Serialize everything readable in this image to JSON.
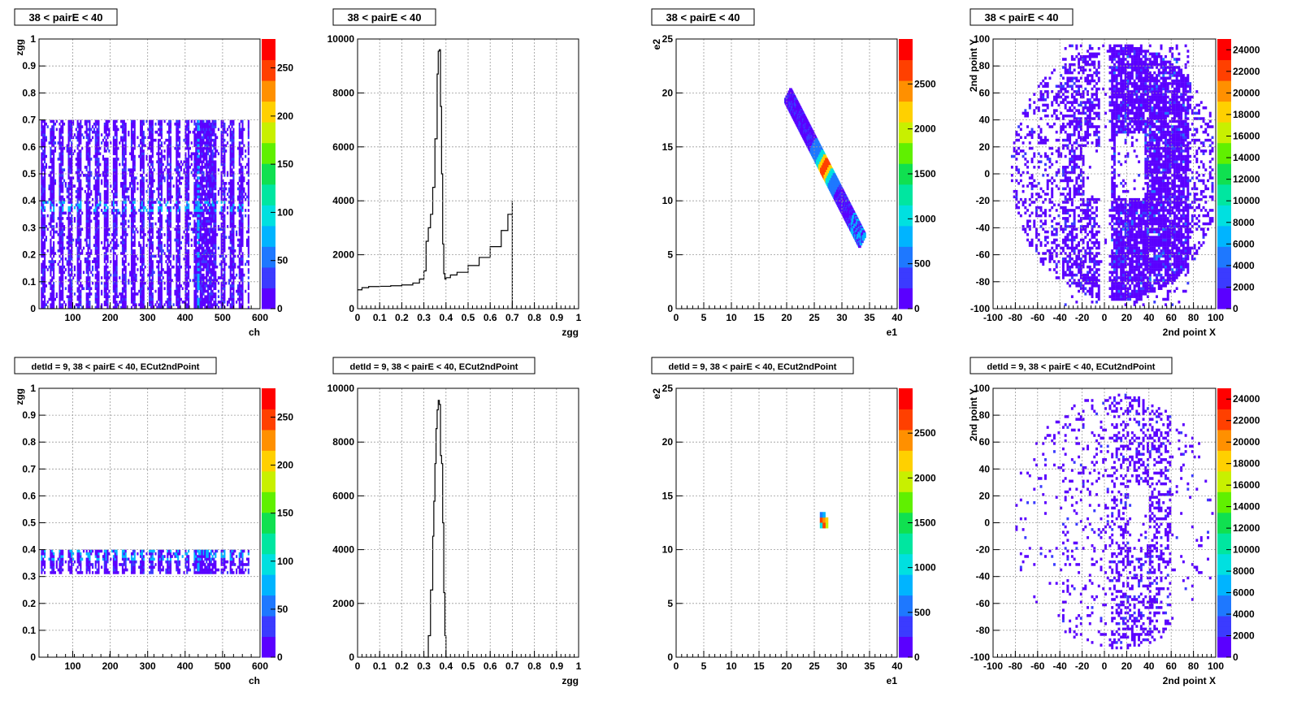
{
  "colors": {
    "palette": [
      "#5a00ff",
      "#3b3bff",
      "#1e78ff",
      "#00b4ff",
      "#00e0e0",
      "#00e6a0",
      "#10e050",
      "#60f000",
      "#c8f000",
      "#ffd000",
      "#ff9000",
      "#ff4000",
      "#ff0000"
    ],
    "hist_line": "#000000",
    "grid": "#9a9a9a"
  },
  "chart_data": [
    {
      "type": "heatmap",
      "title": "38 < pairE < 40",
      "xlabel": "ch",
      "ylabel": "zgg",
      "xlim": [
        10,
        600
      ],
      "ylim": [
        0,
        1
      ],
      "xticks": [
        100,
        200,
        300,
        400,
        500,
        600
      ],
      "yticks": [
        0,
        0.1,
        0.2,
        0.3,
        0.4,
        0.5,
        0.6,
        0.7,
        0.8,
        0.9,
        1
      ],
      "zlim": [
        0,
        280
      ],
      "zticks": [
        0,
        50,
        100,
        150,
        200,
        250
      ],
      "grid": true,
      "description_values": {
        "ch_range": [
          15,
          570
        ],
        "zgg_range": [
          0.0,
          0.7
        ],
        "peak_zgg": 0.375
      }
    },
    {
      "type": "line",
      "title": "38 < pairE < 40",
      "xlabel": "zgg",
      "ylabel": "",
      "xlim": [
        0,
        1
      ],
      "ylim": [
        0,
        10000
      ],
      "xticks": [
        0,
        0.1,
        0.2,
        0.3,
        0.4,
        0.5,
        0.6,
        0.7,
        0.8,
        0.9,
        1
      ],
      "yticks": [
        0,
        2000,
        4000,
        6000,
        8000,
        10000
      ],
      "grid": true,
      "x": [
        0,
        0.02,
        0.05,
        0.1,
        0.15,
        0.2,
        0.25,
        0.28,
        0.3,
        0.31,
        0.32,
        0.33,
        0.34,
        0.35,
        0.36,
        0.365,
        0.37,
        0.375,
        0.38,
        0.385,
        0.39,
        0.395,
        0.4,
        0.42,
        0.45,
        0.5,
        0.55,
        0.6,
        0.65,
        0.68,
        0.7
      ],
      "y": [
        700,
        780,
        820,
        830,
        850,
        880,
        950,
        1100,
        1400,
        2500,
        3000,
        3500,
        4500,
        6300,
        8700,
        9550,
        9600,
        7500,
        5000,
        2400,
        1300,
        1100,
        1150,
        1250,
        1350,
        1600,
        1900,
        2300,
        2900,
        3500,
        4000
      ]
    },
    {
      "type": "heatmap",
      "title": "38 < pairE < 40",
      "xlabel": "e1",
      "ylabel": "e2",
      "xlim": [
        0,
        40
      ],
      "ylim": [
        0,
        25
      ],
      "xticks": [
        0,
        5,
        10,
        15,
        20,
        25,
        30,
        35,
        40
      ],
      "yticks": [
        0,
        5,
        10,
        15,
        20,
        25
      ],
      "zlim": [
        0,
        3000
      ],
      "zticks": [
        0,
        500,
        1000,
        1500,
        2000,
        2500
      ],
      "grid": true,
      "description_values": {
        "band_start": [
          20,
          19.5
        ],
        "band_end": [
          33.5,
          6
        ],
        "peak": [
          26.5,
          12.5
        ]
      }
    },
    {
      "type": "heatmap",
      "title": "38 < pairE < 40",
      "xlabel": "2nd point X",
      "ylabel": "2nd point Y",
      "xlim": [
        -100,
        100
      ],
      "ylim": [
        -100,
        100
      ],
      "xticks": [
        -100,
        -80,
        -60,
        -40,
        -20,
        0,
        20,
        40,
        60,
        80,
        100
      ],
      "yticks": [
        -100,
        -80,
        -60,
        -40,
        -20,
        0,
        20,
        40,
        60,
        80,
        100
      ],
      "zlim": [
        0,
        25000
      ],
      "zticks": [
        0,
        2000,
        4000,
        6000,
        8000,
        10000,
        12000,
        14000,
        16000,
        18000,
        20000,
        22000,
        24000
      ],
      "grid": true
    },
    {
      "type": "heatmap",
      "title": "detId = 9, 38 < pairE < 40, ECut2ndPoint",
      "xlabel": "ch",
      "ylabel": "zgg",
      "xlim": [
        10,
        600
      ],
      "ylim": [
        0,
        1
      ],
      "xticks": [
        100,
        200,
        300,
        400,
        500,
        600
      ],
      "yticks": [
        0,
        0.1,
        0.2,
        0.3,
        0.4,
        0.5,
        0.6,
        0.7,
        0.8,
        0.9,
        1
      ],
      "zlim": [
        0,
        280
      ],
      "zticks": [
        0,
        50,
        100,
        150,
        200,
        250
      ],
      "grid": true,
      "description_values": {
        "ch_range": [
          15,
          570
        ],
        "zgg_range": [
          0.31,
          0.4
        ]
      }
    },
    {
      "type": "line",
      "title": "detId = 9, 38 < pairE < 40, ECut2ndPoint",
      "xlabel": "zgg",
      "ylabel": "",
      "xlim": [
        0,
        1
      ],
      "ylim": [
        0,
        10000
      ],
      "xticks": [
        0,
        0.1,
        0.2,
        0.3,
        0.4,
        0.5,
        0.6,
        0.7,
        0.8,
        0.9,
        1
      ],
      "yticks": [
        0,
        2000,
        4000,
        6000,
        8000,
        10000
      ],
      "grid": true,
      "x": [
        0.3,
        0.31,
        0.32,
        0.33,
        0.34,
        0.345,
        0.35,
        0.355,
        0.36,
        0.365,
        0.37,
        0.375,
        0.38,
        0.385,
        0.39,
        0.395,
        0.4,
        0.41
      ],
      "y": [
        0,
        0,
        800,
        2500,
        4500,
        5800,
        7200,
        8500,
        9200,
        9550,
        9400,
        7500,
        7200,
        5000,
        2400,
        800,
        0,
        0
      ]
    },
    {
      "type": "heatmap",
      "title": "detId = 9, 38 < pairE < 40, ECut2ndPoint",
      "xlabel": "e1",
      "ylabel": "e2",
      "xlim": [
        0,
        40
      ],
      "ylim": [
        0,
        25
      ],
      "xticks": [
        0,
        5,
        10,
        15,
        20,
        25,
        30,
        35,
        40
      ],
      "yticks": [
        0,
        5,
        10,
        15,
        20,
        25
      ],
      "zlim": [
        0,
        3000
      ],
      "zticks": [
        0,
        500,
        1000,
        1500,
        2000,
        2500
      ],
      "grid": true,
      "description_values": {
        "peak": [
          26.5,
          12.5
        ]
      }
    },
    {
      "type": "heatmap",
      "title": "detId = 9, 38 < pairE < 40, ECut2ndPoint",
      "xlabel": "2nd point X",
      "ylabel": "2nd point Y",
      "xlim": [
        -100,
        100
      ],
      "ylim": [
        -100,
        100
      ],
      "xticks": [
        -100,
        -80,
        -60,
        -40,
        -20,
        0,
        20,
        40,
        60,
        80,
        100
      ],
      "yticks": [
        -100,
        -80,
        -60,
        -40,
        -20,
        0,
        20,
        40,
        60,
        80,
        100
      ],
      "zlim": [
        0,
        25000
      ],
      "zticks": [
        0,
        2000,
        4000,
        6000,
        8000,
        10000,
        12000,
        14000,
        16000,
        18000,
        20000,
        22000,
        24000
      ],
      "grid": true
    }
  ]
}
